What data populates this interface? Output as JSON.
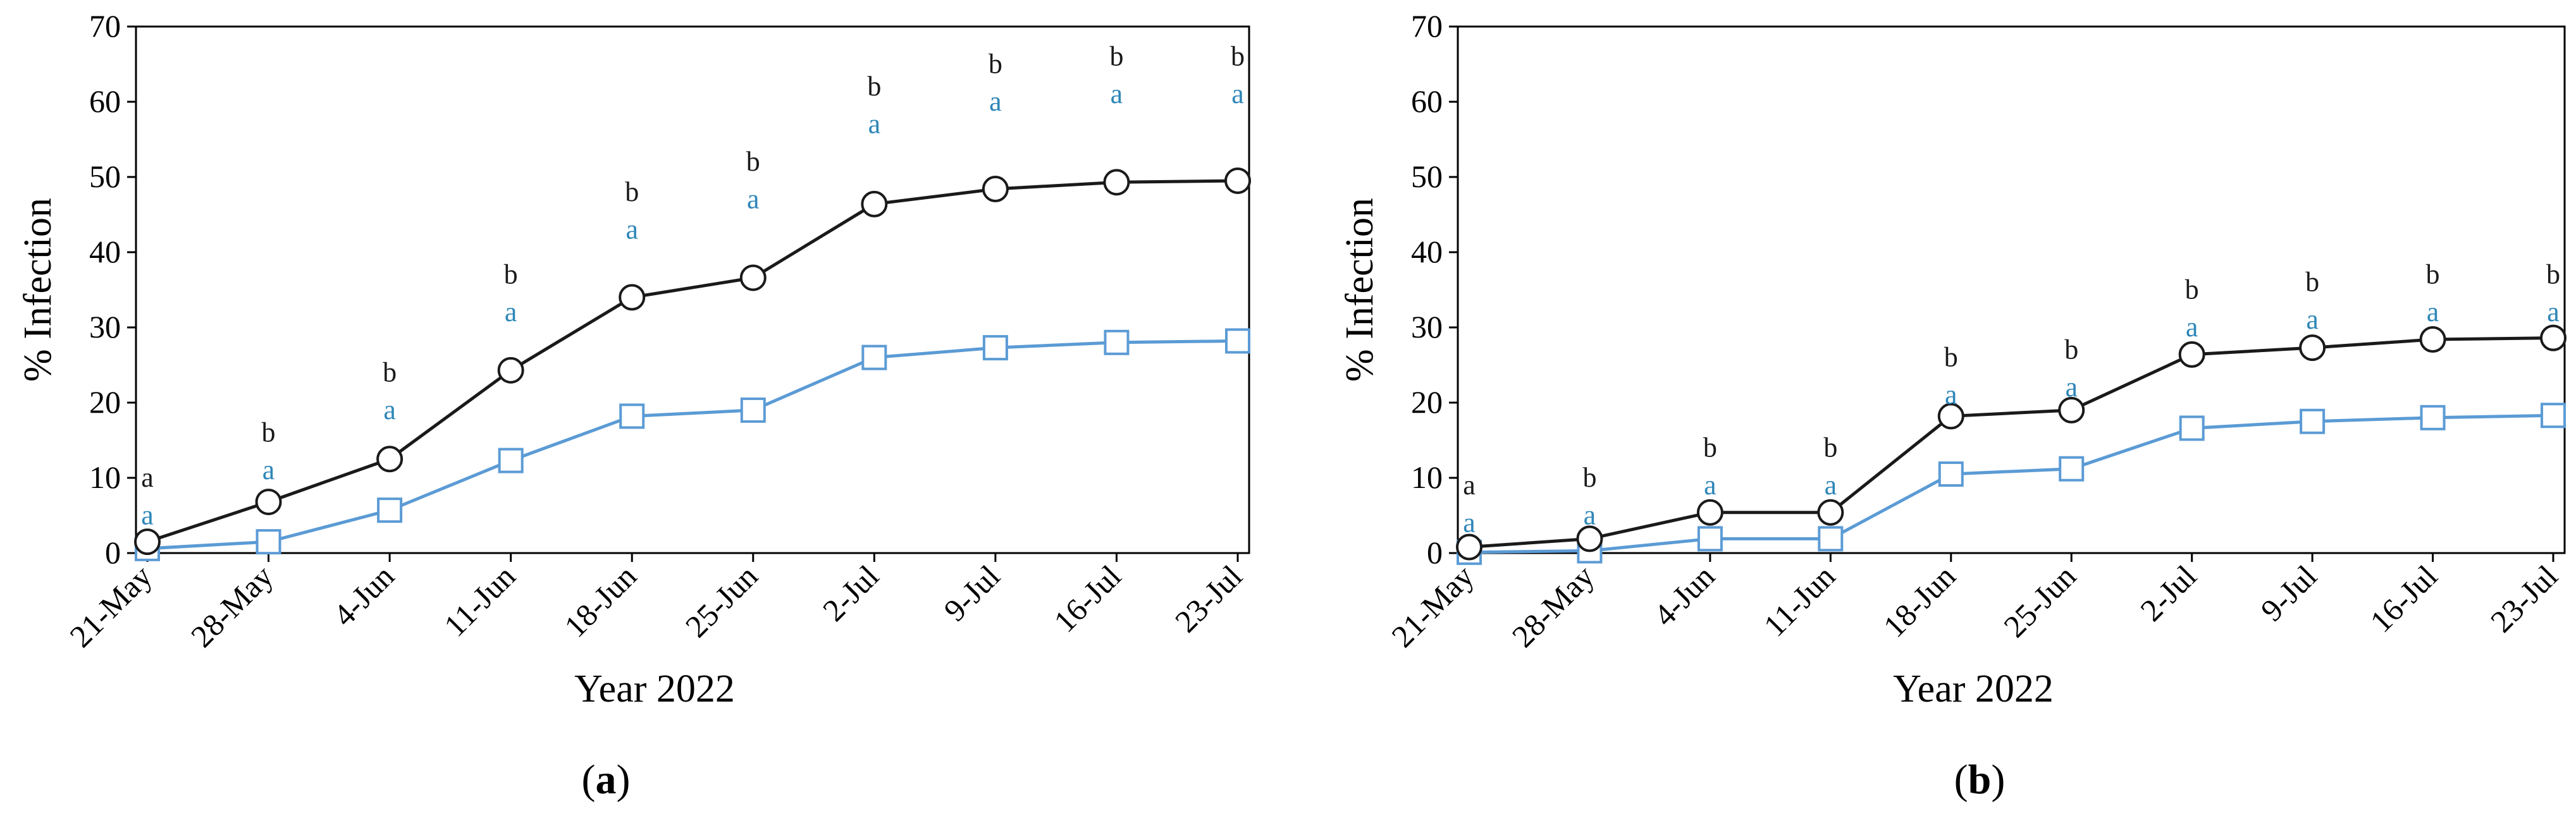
{
  "colors": {
    "series_black": "#1a1a1a",
    "series_blue": "#5b9bd5",
    "letter_blue": "#2e86b8",
    "axis": "#000000"
  },
  "chart_data": [
    {
      "type": "line",
      "panel_label": "a",
      "xlabel": "Year 2022",
      "ylabel": "% Infection",
      "ylim": [
        0,
        70
      ],
      "yticks": [
        0,
        10,
        20,
        30,
        40,
        50,
        60,
        70
      ],
      "categories": [
        "21-May",
        "28-May",
        "4-Jun",
        "11-Jun",
        "18-Jun",
        "25-Jun",
        "2-Jul",
        "9-Jul",
        "16-Jul",
        "23-Jul"
      ],
      "grid": false,
      "series": [
        {
          "marker": "circle",
          "color": "#1a1a1a",
          "values": [
            1.5,
            6.8,
            12.5,
            24.3,
            34.0,
            36.6,
            46.4,
            48.4,
            49.3,
            49.5
          ],
          "letters": [
            "a",
            "b",
            "b",
            "b",
            "b",
            "b",
            "b",
            "b",
            "b",
            "b"
          ],
          "letter_y": [
            10,
            16,
            24,
            37,
            48,
            52,
            62,
            65,
            66,
            66
          ]
        },
        {
          "marker": "square",
          "color": "#5b9bd5",
          "values": [
            0.6,
            1.5,
            5.7,
            12.3,
            18.2,
            19.0,
            26.0,
            27.3,
            28.0,
            28.2
          ],
          "letters": [
            "a",
            "a",
            "a",
            "a",
            "a",
            "a",
            "a",
            "a",
            "a",
            "a"
          ],
          "letter_y": [
            5,
            11,
            19,
            32,
            43,
            47,
            57,
            60,
            61,
            61
          ]
        }
      ]
    },
    {
      "type": "line",
      "panel_label": "b",
      "xlabel": "Year 2022",
      "ylabel": "% Infection",
      "ylim": [
        0,
        70
      ],
      "yticks": [
        0,
        10,
        20,
        30,
        40,
        50,
        60,
        70
      ],
      "categories": [
        "21-May",
        "28-May",
        "4-Jun",
        "11-Jun",
        "18-Jun",
        "25-Jun",
        "2-Jul",
        "9-Jul",
        "16-Jul",
        "23-Jul"
      ],
      "grid": false,
      "series": [
        {
          "marker": "circle",
          "color": "#1a1a1a",
          "values": [
            0.8,
            1.9,
            5.4,
            5.4,
            18.2,
            19.0,
            26.4,
            27.3,
            28.4,
            28.6
          ],
          "letters": [
            "a",
            "b",
            "b",
            "b",
            "b",
            "b",
            "b",
            "b",
            "b",
            "b"
          ],
          "letter_y": [
            9,
            10,
            14,
            14,
            26,
            27,
            35,
            36,
            37,
            37
          ]
        },
        {
          "marker": "square",
          "color": "#5b9bd5",
          "values": [
            0.1,
            0.3,
            1.9,
            1.9,
            10.5,
            11.2,
            16.6,
            17.5,
            18.0,
            18.3
          ],
          "letters": [
            "a",
            "a",
            "a",
            "a",
            "a",
            "a",
            "a",
            "a",
            "a",
            "a"
          ],
          "letter_y": [
            4,
            5,
            9,
            9,
            21,
            22,
            30,
            31,
            32,
            32
          ]
        }
      ]
    }
  ]
}
